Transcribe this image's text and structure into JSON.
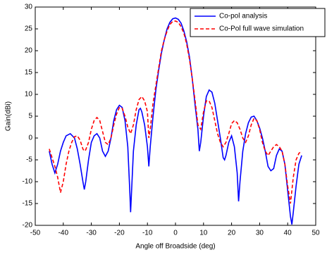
{
  "chart_data": {
    "type": "line",
    "xlabel": "Angle off Broadside (deg)",
    "ylabel": "Gain(dBi)",
    "xlim": [
      -50,
      50
    ],
    "ylim": [
      -20,
      30
    ],
    "xticks": [
      -50,
      -40,
      -30,
      -20,
      -10,
      0,
      10,
      20,
      30,
      40,
      50
    ],
    "yticks": [
      -20,
      -15,
      -10,
      -5,
      0,
      5,
      10,
      15,
      20,
      25,
      30
    ],
    "grid": false,
    "legend": "upper right",
    "series": [
      {
        "name": "Co-pol analysis",
        "color": "#0000ff",
        "dash": "solid",
        "x": [
          -45,
          -44,
          -43,
          -42,
          -41,
          -40,
          -39,
          -37.5,
          -36,
          -35,
          -34,
          -33,
          -32.5,
          -32,
          -31,
          -30,
          -29,
          -28,
          -27,
          -26,
          -25,
          -24,
          -23,
          -22,
          -21,
          -20,
          -19,
          -18,
          -17,
          -16.3,
          -16,
          -15.5,
          -15,
          -14,
          -13,
          -12.5,
          -12,
          -11,
          -10,
          -9.5,
          -9,
          -8,
          -7,
          -6,
          -5,
          -4,
          -3,
          -2,
          -1,
          0,
          1,
          2,
          3,
          4,
          5,
          6,
          7,
          8,
          8.5,
          9,
          10,
          11,
          12,
          13,
          14,
          15,
          16,
          17,
          17.5,
          18,
          19,
          20,
          21,
          22,
          22.5,
          23,
          24,
          25,
          26,
          27,
          28,
          29,
          30,
          31,
          32,
          33,
          34,
          35,
          36,
          37,
          38,
          39,
          40,
          41,
          41.5,
          42,
          43,
          44,
          45
        ],
        "values": [
          -3,
          -6,
          -8,
          -6,
          -3,
          -1,
          0.5,
          1,
          0,
          -2.5,
          -6,
          -10,
          -11.8,
          -10,
          -5,
          -1,
          0.5,
          1,
          0,
          -3,
          -4.2,
          -3,
          0,
          4,
          6.5,
          7.5,
          7,
          4,
          -2,
          -12,
          -17,
          -10,
          -3,
          3,
          6.5,
          6.8,
          6,
          3,
          -2,
          -6.5,
          -2,
          5,
          11,
          15.5,
          19.5,
          22.5,
          25,
          26.5,
          27.3,
          27.5,
          27.2,
          26.3,
          24.5,
          22,
          18.5,
          13.5,
          7.5,
          2,
          -3,
          -1,
          5,
          9.5,
          11,
          10.5,
          8,
          4,
          0,
          -4.5,
          -5,
          -4,
          -1,
          0.5,
          -2,
          -8,
          -14.5,
          -10,
          -3,
          1,
          3.5,
          4.8,
          5,
          4,
          2.3,
          0,
          -3,
          -6.5,
          -7.5,
          -7,
          -4,
          -2.5,
          -3,
          -6,
          -12,
          -18,
          -19.8,
          -17,
          -11,
          -6,
          -4
        ]
      },
      {
        "name": "Co-Pol full wave simulation",
        "color": "#ff0000",
        "dash": "dashed",
        "x": [
          -45,
          -44,
          -43,
          -42,
          -41,
          -40,
          -39,
          -38,
          -37,
          -36,
          -35,
          -34,
          -33,
          -32.5,
          -32,
          -31,
          -30,
          -29,
          -28,
          -27,
          -26,
          -25,
          -24,
          -23,
          -22,
          -21,
          -20,
          -19,
          -18,
          -17,
          -16,
          -15,
          -14,
          -13,
          -12,
          -11,
          -10,
          -9.5,
          -9,
          -8,
          -7,
          -6,
          -5,
          -4,
          -3,
          -2,
          -1,
          0,
          1,
          2,
          3,
          4,
          5,
          6,
          7,
          8,
          9,
          10,
          11,
          12,
          13,
          14,
          15,
          16,
          17,
          18,
          19,
          20,
          21,
          22,
          23,
          24,
          25,
          26,
          27,
          28,
          29,
          30,
          31,
          32,
          33,
          34,
          35,
          36,
          37,
          38,
          39,
          40,
          41,
          42,
          43,
          44,
          45
        ],
        "values": [
          -2.5,
          -4.5,
          -6.5,
          -9,
          -12.5,
          -10,
          -6,
          -3,
          -1,
          0.3,
          0.5,
          -0.5,
          -2.5,
          -3,
          -2.7,
          -1,
          2,
          4,
          4.7,
          4,
          1.5,
          -1,
          -1.5,
          0,
          3,
          5.5,
          7,
          6.8,
          5,
          2.5,
          1,
          3,
          6.5,
          8.8,
          9.5,
          8.5,
          6,
          0,
          2,
          8,
          12,
          16,
          20,
          22.5,
          24.5,
          26,
          26.7,
          26.8,
          26.5,
          25.5,
          24,
          21.5,
          18,
          13.5,
          8.5,
          3,
          2,
          6,
          8.5,
          8.5,
          7,
          4,
          1,
          -1,
          -2,
          -1,
          1,
          3.3,
          4,
          3.5,
          2,
          0,
          -1,
          0.5,
          3,
          4.5,
          4,
          2,
          -1,
          -3,
          -4,
          -3,
          -2,
          -1.5,
          -2,
          -3,
          -6,
          -11,
          -15,
          -9,
          -5,
          -3.5,
          -3
        ]
      }
    ]
  }
}
